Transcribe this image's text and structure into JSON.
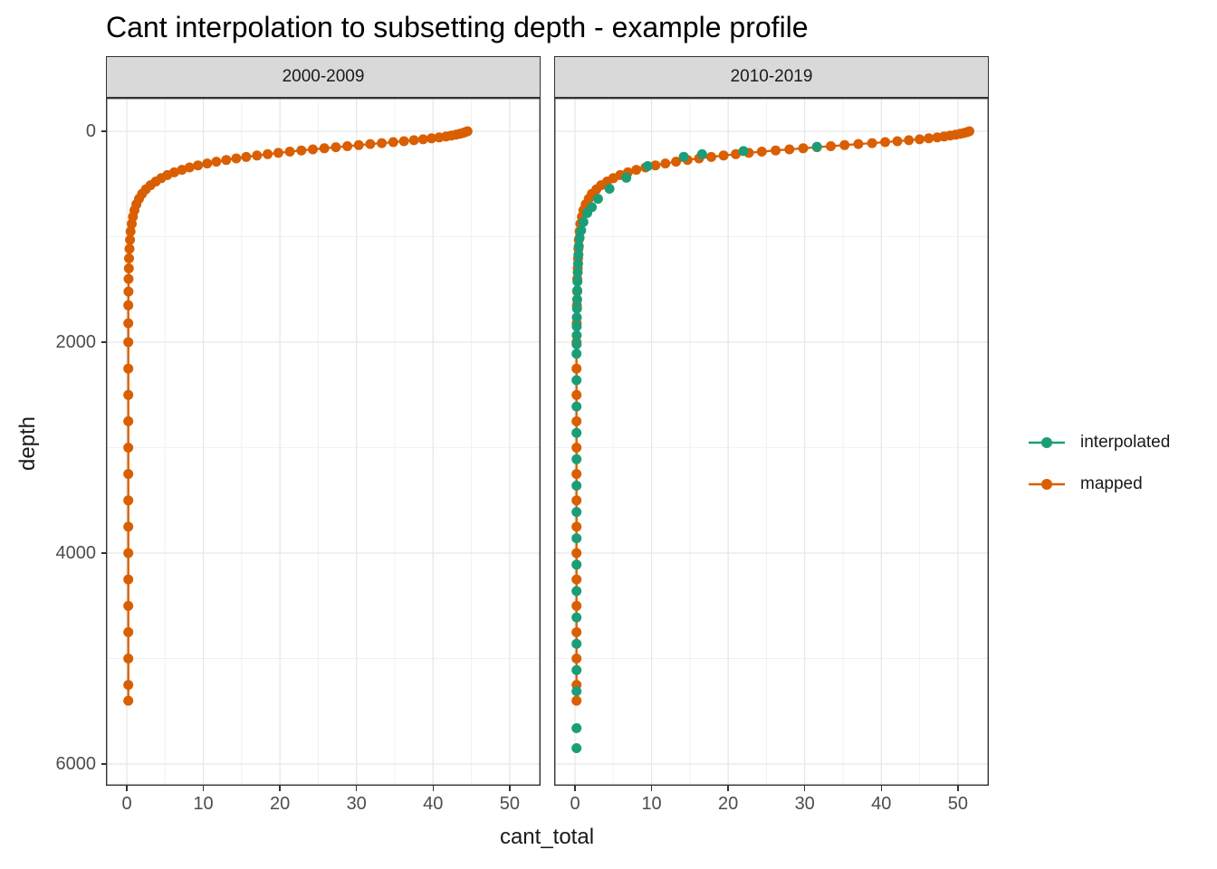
{
  "title": "Cant interpolation to subsetting depth - example profile",
  "facets": [
    "2000-2009",
    "2010-2019"
  ],
  "axes": {
    "x": {
      "title": "cant_total",
      "tick_labels": [
        "0",
        "10",
        "20",
        "30",
        "40",
        "50"
      ]
    },
    "y": {
      "title": "depth",
      "tick_labels": [
        "0",
        "2000",
        "4000",
        "6000"
      ]
    }
  },
  "legend": {
    "items": [
      {
        "label": "interpolated",
        "color": "#1B9E77"
      },
      {
        "label": "mapped",
        "color": "#D95F02"
      }
    ]
  },
  "style": {
    "strip_bg": "#D9D9D9",
    "panel_border": "#333333",
    "grid_major": "#E6E6E6",
    "grid_minor": "#F0F0F0",
    "tick_color": "#333333",
    "tick_label_color": "#4D4D4D",
    "text_color": "#1A1A1A"
  },
  "chart_data": [
    {
      "type": "scatter",
      "facet": "2000-2009",
      "xlabel": "cant_total",
      "ylabel": "depth",
      "x_ticks": [
        0,
        10,
        20,
        30,
        40,
        50
      ],
      "y_ticks": [
        0,
        2000,
        4000,
        6000
      ],
      "x_domain": [
        -2.72,
        54.04
      ],
      "y_domain": [
        -318,
        6206
      ],
      "y_reversed": true,
      "grid": true,
      "series": [
        {
          "name": "mapped",
          "color": "#D95F02",
          "line": true,
          "points": [
            [
              44.5,
              0
            ],
            [
              44.2,
              8
            ],
            [
              43.9,
              16
            ],
            [
              43.5,
              24
            ],
            [
              43.0,
              32
            ],
            [
              42.4,
              40
            ],
            [
              41.7,
              49
            ],
            [
              40.8,
              58
            ],
            [
              39.8,
              67
            ],
            [
              38.7,
              76
            ],
            [
              37.5,
              85
            ],
            [
              36.2,
              94
            ],
            [
              34.8,
              103
            ],
            [
              33.3,
              112
            ],
            [
              31.8,
              121
            ],
            [
              30.3,
              131
            ],
            [
              28.8,
              141
            ],
            [
              27.3,
              151
            ],
            [
              25.8,
              161
            ],
            [
              24.3,
              171
            ],
            [
              22.8,
              182
            ],
            [
              21.3,
              193
            ],
            [
              19.8,
              205
            ],
            [
              18.4,
              217
            ],
            [
              17.0,
              230
            ],
            [
              15.6,
              243
            ],
            [
              14.3,
              257
            ],
            [
              13.0,
              272
            ],
            [
              11.7,
              288
            ],
            [
              10.5,
              305
            ],
            [
              9.3,
              323
            ],
            [
              8.2,
              343
            ],
            [
              7.2,
              365
            ],
            [
              6.2,
              389
            ],
            [
              5.3,
              415
            ],
            [
              4.5,
              444
            ],
            [
              3.8,
              476
            ],
            [
              3.1,
              511
            ],
            [
              2.5,
              550
            ],
            [
              2.0,
              593
            ],
            [
              1.6,
              640
            ],
            [
              1.25,
              692
            ],
            [
              1.0,
              749
            ],
            [
              0.8,
              811
            ],
            [
              0.65,
              878
            ],
            [
              0.5,
              950
            ],
            [
              0.42,
              1030
            ],
            [
              0.36,
              1115
            ],
            [
              0.3,
              1205
            ],
            [
              0.27,
              1300
            ],
            [
              0.24,
              1400
            ],
            [
              0.22,
              1520
            ],
            [
              0.2,
              1650
            ],
            [
              0.2,
              1820
            ],
            [
              0.2,
              2000
            ],
            [
              0.2,
              2250
            ],
            [
              0.2,
              2500
            ],
            [
              0.2,
              2750
            ],
            [
              0.2,
              3000
            ],
            [
              0.2,
              3250
            ],
            [
              0.2,
              3500
            ],
            [
              0.2,
              3750
            ],
            [
              0.2,
              4000
            ],
            [
              0.2,
              4250
            ],
            [
              0.2,
              4500
            ],
            [
              0.2,
              4750
            ],
            [
              0.2,
              5000
            ],
            [
              0.2,
              5250
            ],
            [
              0.2,
              5400
            ]
          ]
        }
      ]
    },
    {
      "type": "scatter",
      "facet": "2010-2019",
      "xlabel": "cant_total",
      "ylabel": "depth",
      "x_ticks": [
        0,
        10,
        20,
        30,
        40,
        50
      ],
      "y_ticks": [
        0,
        2000,
        4000,
        6000
      ],
      "x_domain": [
        -2.72,
        54.04
      ],
      "y_domain": [
        -318,
        6206
      ],
      "y_reversed": true,
      "grid": true,
      "series": [
        {
          "name": "mapped",
          "color": "#D95F02",
          "line": true,
          "points": [
            [
              51.5,
              0
            ],
            [
              51.2,
              8
            ],
            [
              50.8,
              16
            ],
            [
              50.3,
              24
            ],
            [
              49.7,
              32
            ],
            [
              49.0,
              40
            ],
            [
              48.2,
              49
            ],
            [
              47.3,
              58
            ],
            [
              46.2,
              67
            ],
            [
              45.0,
              76
            ],
            [
              43.6,
              85
            ],
            [
              42.1,
              94
            ],
            [
              40.5,
              103
            ],
            [
              38.8,
              112
            ],
            [
              37.0,
              121
            ],
            [
              35.2,
              131
            ],
            [
              33.4,
              141
            ],
            [
              31.6,
              151
            ],
            [
              29.8,
              161
            ],
            [
              28.0,
              171
            ],
            [
              26.2,
              182
            ],
            [
              24.4,
              193
            ],
            [
              22.7,
              205
            ],
            [
              21.0,
              217
            ],
            [
              19.4,
              230
            ],
            [
              17.8,
              243
            ],
            [
              16.2,
              257
            ],
            [
              14.7,
              272
            ],
            [
              13.2,
              288
            ],
            [
              11.8,
              305
            ],
            [
              10.5,
              323
            ],
            [
              9.2,
              343
            ],
            [
              8.0,
              365
            ],
            [
              6.9,
              389
            ],
            [
              5.9,
              415
            ],
            [
              5.0,
              444
            ],
            [
              4.2,
              476
            ],
            [
              3.4,
              511
            ],
            [
              2.8,
              550
            ],
            [
              2.2,
              593
            ],
            [
              1.8,
              640
            ],
            [
              1.4,
              692
            ],
            [
              1.1,
              749
            ],
            [
              0.9,
              811
            ],
            [
              0.7,
              878
            ],
            [
              0.6,
              950
            ],
            [
              0.5,
              1030
            ],
            [
              0.45,
              1115
            ],
            [
              0.4,
              1205
            ],
            [
              0.35,
              1300
            ],
            [
              0.3,
              1400
            ],
            [
              0.28,
              1520
            ],
            [
              0.25,
              1650
            ],
            [
              0.22,
              1820
            ],
            [
              0.2,
              2000
            ],
            [
              0.2,
              2250
            ],
            [
              0.2,
              2500
            ],
            [
              0.2,
              2750
            ],
            [
              0.2,
              3000
            ],
            [
              0.2,
              3250
            ],
            [
              0.2,
              3500
            ],
            [
              0.2,
              3750
            ],
            [
              0.2,
              4000
            ],
            [
              0.2,
              4250
            ],
            [
              0.2,
              4500
            ],
            [
              0.2,
              4750
            ],
            [
              0.2,
              5000
            ],
            [
              0.2,
              5250
            ],
            [
              0.2,
              5400
            ]
          ]
        },
        {
          "name": "interpolated",
          "color": "#1B9E77",
          "line": false,
          "points": [
            [
              31.6,
              146
            ],
            [
              22.0,
              188
            ],
            [
              16.6,
              218
            ],
            [
              14.2,
              242
            ],
            [
              9.5,
              330
            ],
            [
              6.7,
              440
            ],
            [
              4.5,
              545
            ],
            [
              3.0,
              640
            ],
            [
              2.2,
              720
            ],
            [
              1.6,
              775
            ],
            [
              1.1,
              860
            ],
            [
              0.8,
              940
            ],
            [
              0.6,
              1010
            ],
            [
              0.5,
              1090
            ],
            [
              0.45,
              1170
            ],
            [
              0.4,
              1255
            ],
            [
              0.35,
              1340
            ],
            [
              0.32,
              1425
            ],
            [
              0.3,
              1510
            ],
            [
              0.28,
              1595
            ],
            [
              0.26,
              1680
            ],
            [
              0.24,
              1765
            ],
            [
              0.23,
              1850
            ],
            [
              0.22,
              1935
            ],
            [
              0.21,
              2020
            ],
            [
              0.2,
              2110
            ],
            [
              0.2,
              2360
            ],
            [
              0.2,
              2610
            ],
            [
              0.2,
              2860
            ],
            [
              0.2,
              3110
            ],
            [
              0.2,
              3360
            ],
            [
              0.2,
              3610
            ],
            [
              0.2,
              3860
            ],
            [
              0.2,
              4110
            ],
            [
              0.2,
              4360
            ],
            [
              0.2,
              4610
            ],
            [
              0.2,
              4860
            ],
            [
              0.2,
              5110
            ],
            [
              0.2,
              5310
            ],
            [
              0.2,
              5660
            ],
            [
              0.2,
              5850
            ]
          ]
        }
      ]
    }
  ]
}
